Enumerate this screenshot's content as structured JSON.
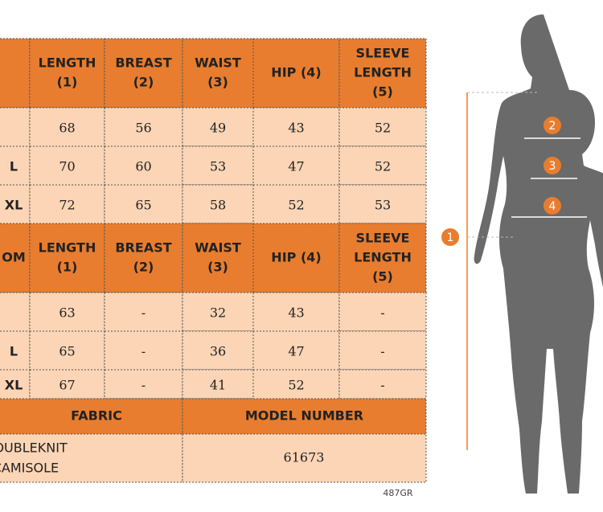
{
  "table": {
    "sections": [
      {
        "header": [
          [
            ""
          ],
          [
            "LENGTH",
            "(1)"
          ],
          [
            "BREAST",
            "(2)"
          ],
          [
            "WAIST",
            "(3)"
          ],
          [
            "HIP (4)"
          ],
          [
            "SLEEVE",
            "LENGTH",
            "(5)"
          ]
        ],
        "rows": [
          [
            "",
            "68",
            "56",
            "49",
            "43",
            "52"
          ],
          [
            "L",
            "70",
            "60",
            "53",
            "47",
            "52"
          ],
          [
            "XL",
            "72",
            "65",
            "58",
            "52",
            "53"
          ]
        ]
      },
      {
        "header": [
          [
            "OM"
          ],
          [
            "LENGTH",
            "(1)"
          ],
          [
            "BREAST",
            "(2)"
          ],
          [
            "WAIST",
            "(3)"
          ],
          [
            "HIP (4)"
          ],
          [
            "SLEEVE",
            "LENGTH",
            "(5)"
          ]
        ],
        "rows": [
          [
            "",
            "63",
            "-",
            "32",
            "43",
            "-"
          ],
          [
            "L",
            "65",
            "-",
            "36",
            "47",
            "-"
          ],
          [
            "XL",
            "67",
            "-",
            "41",
            "52",
            "-"
          ]
        ]
      }
    ],
    "footer": {
      "headers": [
        "FABRIC",
        "MODEL NUMBER"
      ],
      "fabric": [
        "RAISED DOUBLEKNIT",
        "RAISED CAMISOLE"
      ],
      "model": "61673"
    }
  },
  "note": "487GR",
  "figure": {
    "markers": [
      "1",
      "2",
      "3",
      "4"
    ]
  }
}
